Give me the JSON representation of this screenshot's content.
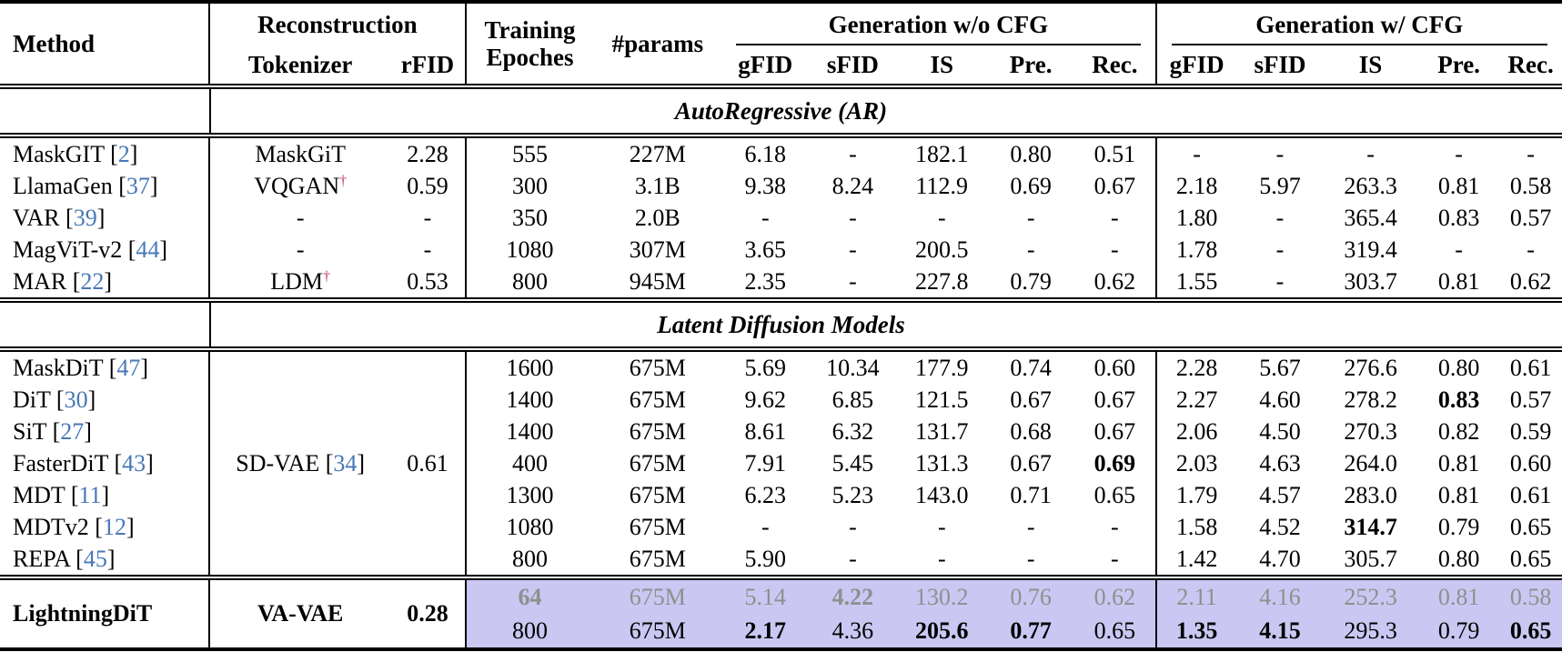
{
  "table": {
    "header": {
      "method": "Method",
      "reconstruction": "Reconstruction",
      "tokenizer": "Tokenizer",
      "rfid": "rFID",
      "training_line1": "Training",
      "training_line2": "Epoches",
      "params": "#params",
      "gen_wo_cfg": "Generation w/o CFG",
      "gen_w_cfg": "Generation w/ CFG",
      "metrics": [
        "gFID",
        "sFID",
        "IS",
        "Pre.",
        "Rec."
      ]
    },
    "dagger_symbol": "†",
    "sections": [
      {
        "label": "AutoRegressive (AR)",
        "rows": [
          {
            "method": "MaskGIT",
            "ref": "2",
            "tokenizer": {
              "name": "MaskGiT"
            },
            "rfid": "2.28",
            "epochs": "555",
            "params": "227M",
            "wo": [
              "6.18",
              "-",
              "182.1",
              "0.80",
              "0.51"
            ],
            "w": [
              "-",
              "-",
              "-",
              "-",
              "-"
            ]
          },
          {
            "method": "LlamaGen",
            "ref": "37",
            "tokenizer": {
              "name": "VQGAN",
              "dagger": true
            },
            "rfid": "0.59",
            "epochs": "300",
            "params": "3.1B",
            "wo": [
              "9.38",
              "8.24",
              "112.9",
              "0.69",
              "0.67"
            ],
            "w": [
              "2.18",
              "5.97",
              "263.3",
              "0.81",
              "0.58"
            ]
          },
          {
            "method": "VAR",
            "ref": "39",
            "tokenizer": {
              "name": "-"
            },
            "rfid": "-",
            "epochs": "350",
            "params": "2.0B",
            "wo": [
              "-",
              "-",
              "-",
              "-",
              "-"
            ],
            "w": [
              "1.80",
              "-",
              "365.4",
              "0.83",
              "0.57"
            ]
          },
          {
            "method": "MagViT-v2",
            "ref": "44",
            "tokenizer": {
              "name": "-"
            },
            "rfid": "-",
            "epochs": "1080",
            "params": "307M",
            "wo": [
              "3.65",
              "-",
              "200.5",
              "-",
              "-"
            ],
            "w": [
              "1.78",
              "-",
              "319.4",
              "-",
              "-"
            ]
          },
          {
            "method": "MAR",
            "ref": "22",
            "tokenizer": {
              "name": "LDM",
              "dagger": true
            },
            "rfid": "0.53",
            "epochs": "800",
            "params": "945M",
            "wo": [
              "2.35",
              "-",
              "227.8",
              "0.79",
              "0.62"
            ],
            "w": [
              "1.55",
              "-",
              "303.7",
              "0.81",
              "0.62"
            ]
          }
        ]
      },
      {
        "label": "Latent Diffusion Models",
        "shared_tokenizer": {
          "name": "SD-VAE",
          "ref": "34"
        },
        "shared_rfid": "0.61",
        "rows": [
          {
            "method": "MaskDiT",
            "ref": "47",
            "epochs": "1600",
            "params": "675M",
            "wo": [
              "5.69",
              "10.34",
              "177.9",
              "0.74",
              "0.60"
            ],
            "w": [
              "2.28",
              "5.67",
              "276.6",
              "0.80",
              "0.61"
            ]
          },
          {
            "method": "DiT",
            "ref": "30",
            "epochs": "1400",
            "params": "675M",
            "wo": [
              "9.62",
              "6.85",
              "121.5",
              "0.67",
              "0.67"
            ],
            "w": [
              "2.27",
              "4.60",
              "278.2",
              {
                "v": "0.83",
                "b": true
              },
              "0.57"
            ]
          },
          {
            "method": "SiT",
            "ref": "27",
            "epochs": "1400",
            "params": "675M",
            "wo": [
              "8.61",
              "6.32",
              "131.7",
              "0.68",
              "0.67"
            ],
            "w": [
              "2.06",
              "4.50",
              "270.3",
              "0.82",
              "0.59"
            ]
          },
          {
            "method": "FasterDiT",
            "ref": "43",
            "epochs": "400",
            "params": "675M",
            "wo": [
              "7.91",
              "5.45",
              "131.3",
              "0.67",
              {
                "v": "0.69",
                "b": true
              }
            ],
            "w": [
              "2.03",
              "4.63",
              "264.0",
              "0.81",
              "0.60"
            ]
          },
          {
            "method": "MDT",
            "ref": "11",
            "epochs": "1300",
            "params": "675M",
            "wo": [
              "6.23",
              "5.23",
              "143.0",
              "0.71",
              "0.65"
            ],
            "w": [
              "1.79",
              "4.57",
              "283.0",
              "0.81",
              "0.61"
            ]
          },
          {
            "method": "MDTv2",
            "ref": "12",
            "epochs": "1080",
            "params": "675M",
            "wo": [
              "-",
              "-",
              "-",
              "-",
              "-"
            ],
            "w": [
              "1.58",
              "4.52",
              {
                "v": "314.7",
                "b": true
              },
              "0.79",
              "0.65"
            ]
          },
          {
            "method": "REPA",
            "ref": "45",
            "epochs": "800",
            "params": "675M",
            "wo": [
              "5.90",
              "-",
              "-",
              "-",
              "-"
            ],
            "w": [
              "1.42",
              "4.70",
              "305.7",
              "0.80",
              "0.65"
            ]
          }
        ]
      }
    ],
    "highlight": {
      "method": "LightningDiT",
      "tokenizer": "VA-VAE",
      "rfid": "0.28",
      "rows": [
        {
          "gray": true,
          "epochs": {
            "v": "64",
            "b": true
          },
          "params": "675M",
          "wo": [
            "5.14",
            {
              "v": "4.22",
              "b": true
            },
            "130.2",
            "0.76",
            "0.62"
          ],
          "w": [
            "2.11",
            "4.16",
            "252.3",
            "0.81",
            "0.58"
          ]
        },
        {
          "gray": false,
          "epochs": "800",
          "params": "675M",
          "wo": [
            {
              "v": "2.17",
              "b": true
            },
            "4.36",
            {
              "v": "205.6",
              "b": true
            },
            {
              "v": "0.77",
              "b": true
            },
            "0.65"
          ],
          "w": [
            {
              "v": "1.35",
              "b": true
            },
            {
              "v": "4.15",
              "b": true
            },
            "295.3",
            "0.79",
            {
              "v": "0.65",
              "b": true
            }
          ]
        }
      ]
    },
    "colors": {
      "citation_blue": "#4878b8",
      "dagger_red": "#c23a5c",
      "highlight_lavender": "#cac8f2",
      "muted_gray": "#8f8f8f"
    }
  }
}
